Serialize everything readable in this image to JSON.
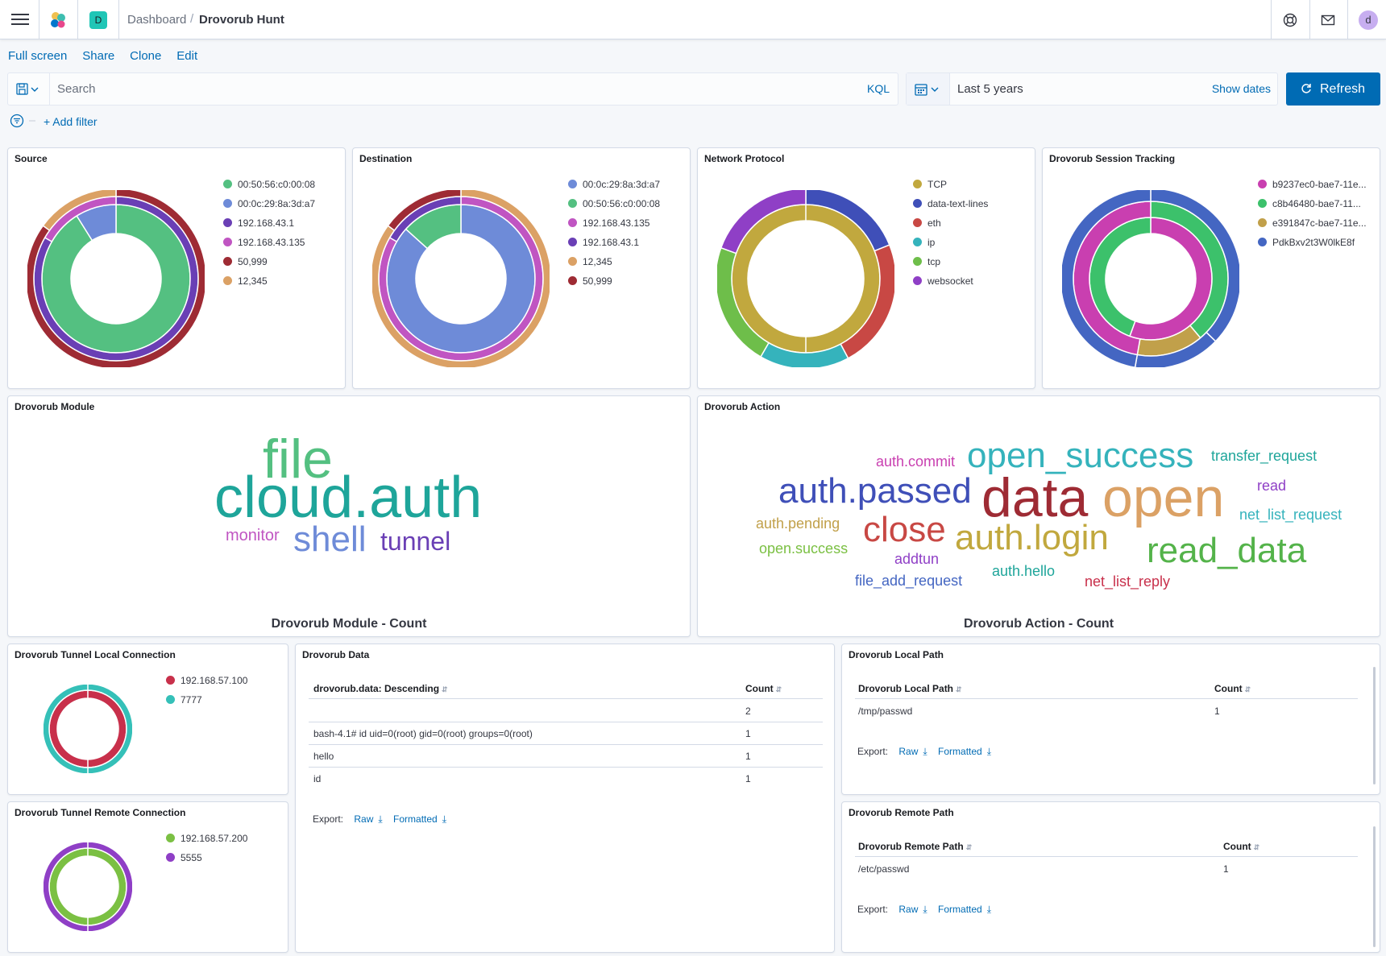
{
  "header": {
    "space_initial": "D",
    "breadcrumb_root": "Dashboard",
    "breadcrumb_sep": "/",
    "breadcrumb_current": "Drovorub Hunt",
    "user_initial": "d"
  },
  "top_links": [
    "Full screen",
    "Share",
    "Clone",
    "Edit"
  ],
  "query": {
    "placeholder": "Search",
    "language": "KQL"
  },
  "time": {
    "range": "Last 5 years",
    "show_dates": "Show dates",
    "refresh_label": "Refresh"
  },
  "filter": {
    "add_label": "+ Add filter"
  },
  "colors": {
    "green": "#54b399",
    "blue": "#6092c0",
    "purple": "#6f45b4",
    "pink": "#c551c7",
    "darkred": "#9e2b34",
    "orange": "#da9c5e",
    "olive": "#c1a83e",
    "navy": "#3f4fb8",
    "red": "#c84844",
    "teal": "#35b3bc",
    "lime": "#6ebe4a",
    "violet": "#8f3fc6"
  },
  "panels": {
    "source": {
      "title": "Source",
      "legend": [
        {
          "label": "00:50:56:c0:00:08",
          "color": "#54c081"
        },
        {
          "label": "00:0c:29:8a:3d:a7",
          "color": "#6e8bd8"
        },
        {
          "label": "192.168.43.1",
          "color": "#6a3fb5"
        },
        {
          "label": "192.168.43.135",
          "color": "#c055c2"
        },
        {
          "label": "50,999",
          "color": "#9e2b34"
        },
        {
          "label": "12,345",
          "color": "#dba165"
        }
      ]
    },
    "destination": {
      "title": "Destination",
      "legend": [
        {
          "label": "00:0c:29:8a:3d:a7",
          "color": "#6e8bd8"
        },
        {
          "label": "00:50:56:c0:00:08",
          "color": "#54c081"
        },
        {
          "label": "192.168.43.135",
          "color": "#c055c2"
        },
        {
          "label": "192.168.43.1",
          "color": "#6a3fb5"
        },
        {
          "label": "12,345",
          "color": "#dba165"
        },
        {
          "label": "50,999",
          "color": "#9e2b34"
        }
      ]
    },
    "protocol": {
      "title": "Network Protocol",
      "legend": [
        {
          "label": "TCP",
          "color": "#c1a83e"
        },
        {
          "label": "data-text-lines",
          "color": "#3f4fb8"
        },
        {
          "label": "eth",
          "color": "#c84844"
        },
        {
          "label": "ip",
          "color": "#35b3bc"
        },
        {
          "label": "tcp",
          "color": "#6ebe4a"
        },
        {
          "label": "websocket",
          "color": "#8f3fc6"
        }
      ]
    },
    "session": {
      "title": "Drovorub Session Tracking",
      "legend": [
        {
          "label": "b9237ec0-bae7-11e...",
          "color": "#c93fb0"
        },
        {
          "label": "c8b46480-bae7-11...",
          "color": "#3cc16b"
        },
        {
          "label": "e391847c-bae7-11e...",
          "color": "#c1a04a"
        },
        {
          "label": "PdkBxv2t3W0lkE8f",
          "color": "#4466c2"
        }
      ]
    },
    "module": {
      "title": "Drovorub Module",
      "caption": "Drovorub Module - Count",
      "words": [
        {
          "text": "file",
          "color": "#54c081"
        },
        {
          "text": "cloud.auth",
          "color": "#1ea59a"
        },
        {
          "text": "monitor",
          "color": "#c055c2"
        },
        {
          "text": "shell",
          "color": "#6e8bd8"
        },
        {
          "text": "tunnel",
          "color": "#6a3fb5"
        }
      ]
    },
    "action": {
      "title": "Drovorub Action",
      "caption": "Drovorub Action - Count",
      "words": [
        {
          "text": "auth.commit",
          "color": "#c93fb0"
        },
        {
          "text": "open_success",
          "color": "#35b3bc"
        },
        {
          "text": "transfer_request",
          "color": "#1ea59a"
        },
        {
          "text": "auth.passed",
          "color": "#3f4fb8"
        },
        {
          "text": "data",
          "color": "#9e2b34"
        },
        {
          "text": "open",
          "color": "#dba165"
        },
        {
          "text": "read",
          "color": "#8f3fc6"
        },
        {
          "text": "net_list_request",
          "color": "#35b3bc"
        },
        {
          "text": "auth.pending",
          "color": "#c1a04a"
        },
        {
          "text": "close",
          "color": "#c84844"
        },
        {
          "text": "auth.login",
          "color": "#c1a83e"
        },
        {
          "text": "read_data",
          "color": "#54b34a"
        },
        {
          "text": "open.success",
          "color": "#7bc043"
        },
        {
          "text": "addtun",
          "color": "#8f3fc6"
        },
        {
          "text": "auth.hello",
          "color": "#1ea59a"
        },
        {
          "text": "file_add_request",
          "color": "#4466c2"
        },
        {
          "text": "net_list_reply",
          "color": "#c8304b"
        }
      ]
    },
    "tunnel_local": {
      "title": "Drovorub Tunnel Local Connection",
      "legend": [
        {
          "label": "192.168.57.100",
          "color": "#c8304b"
        },
        {
          "label": "7777",
          "color": "#35c0b8"
        }
      ]
    },
    "tunnel_remote": {
      "title": "Drovorub Tunnel Remote Connection",
      "legend": [
        {
          "label": "192.168.57.200",
          "color": "#7bc043"
        },
        {
          "label": "5555",
          "color": "#8f3fc6"
        }
      ]
    },
    "data_table": {
      "title": "Drovorub Data",
      "col1": "drovorub.data: Descending",
      "col2": "Count",
      "rows": [
        {
          "value": "",
          "count": "2"
        },
        {
          "value": "bash-4.1# id uid=0(root) gid=0(root) groups=0(root)",
          "count": "1"
        },
        {
          "value": "hello",
          "count": "1"
        },
        {
          "value": "id",
          "count": "1"
        }
      ]
    },
    "local_path": {
      "title": "Drovorub Local Path",
      "col1": "Drovorub Local Path",
      "col2": "Count",
      "rows": [
        {
          "value": "/tmp/passwd",
          "count": "1"
        }
      ]
    },
    "remote_path": {
      "title": "Drovorub Remote Path",
      "col1": "Drovorub Remote Path",
      "col2": "Count",
      "rows": [
        {
          "value": "/etc/passwd",
          "count": "1"
        }
      ]
    }
  },
  "export": {
    "label": "Export:",
    "raw": "Raw",
    "formatted": "Formatted"
  }
}
